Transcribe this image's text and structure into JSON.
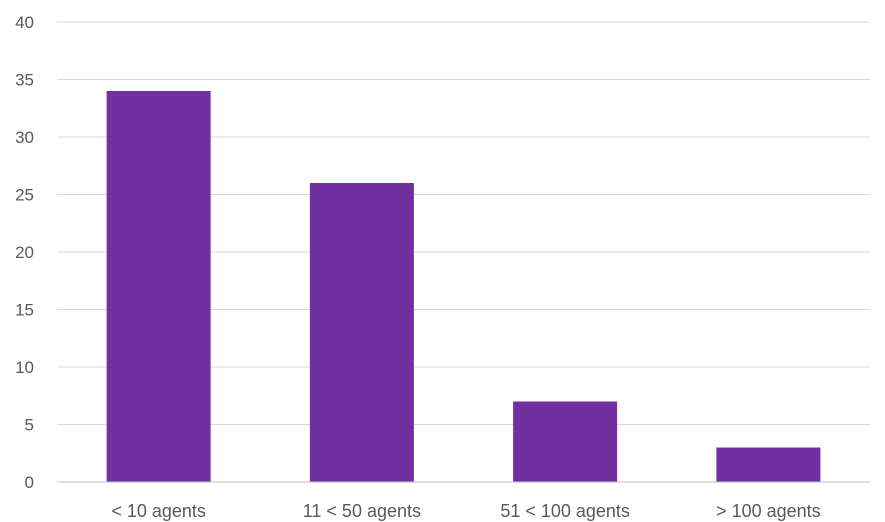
{
  "chart_data": {
    "type": "bar",
    "categories": [
      "< 10 agents",
      "11 < 50 agents",
      "51 < 100 agents",
      "> 100 agents"
    ],
    "values": [
      34,
      26,
      7,
      3
    ],
    "ylim": [
      0,
      40
    ],
    "yticks": [
      0,
      5,
      10,
      15,
      20,
      25,
      30,
      35,
      40
    ],
    "grid": true,
    "bar_color": "#7030A0",
    "gridline_color": "#D9D9D9",
    "text_color": "#595959"
  }
}
